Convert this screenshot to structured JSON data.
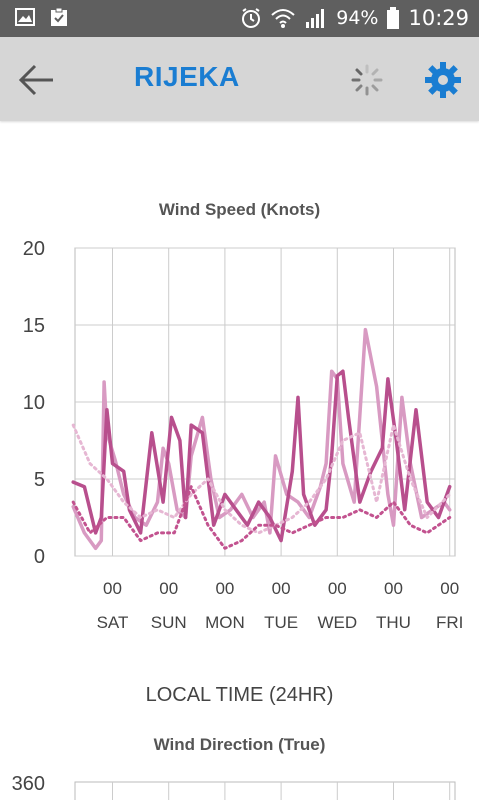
{
  "status_bar": {
    "battery": "94%",
    "time": "10:29",
    "left_icons": [
      "image-icon",
      "clipboard-check-icon"
    ],
    "right_icons": [
      "alarm-icon",
      "wifi-icon",
      "signal-icon",
      "battery-icon"
    ]
  },
  "app_bar": {
    "title": "RIJEKA",
    "back_icon": "arrow-left-icon",
    "loading_icon": "spinner-icon",
    "settings_icon": "gear-icon",
    "accent_color": "#1a7dd2"
  },
  "time_axis_label": "LOCAL TIME (24HR)",
  "chart_data": [
    {
      "type": "line",
      "title": "Wind Speed (Knots)",
      "xlabel": "LOCAL TIME (24HR)",
      "ylabel": "",
      "ylim": [
        0,
        20
      ],
      "yticks": [
        0,
        5,
        10,
        15,
        20
      ],
      "x_hour_ticks": [
        "00",
        "00",
        "00",
        "00",
        "00",
        "00",
        "00"
      ],
      "x_day_ticks": [
        "SAT",
        "SUN",
        "MON",
        "TUE",
        "WED",
        "THU",
        "FRI"
      ],
      "grid": true,
      "series": [
        {
          "color": "#d89ac2",
          "style": "solid",
          "x": [
            0,
            0.2,
            0.4,
            0.5,
            0.55,
            0.6,
            0.75,
            0.9,
            1.1,
            1.3,
            1.5,
            1.6,
            1.7,
            1.85,
            2.0,
            2.1,
            2.3,
            2.45,
            2.6,
            2.8,
            3.0,
            3.2,
            3.4,
            3.5,
            3.6,
            3.8,
            4.0,
            4.2,
            4.4,
            4.5,
            4.6,
            4.7,
            4.8,
            5.0,
            5.2,
            5.4,
            5.6,
            5.7,
            5.85,
            6.0,
            6.2,
            6.4,
            6.6,
            6.7
          ],
          "values": [
            3.2,
            1.5,
            0.5,
            1.0,
            11.3,
            8.0,
            6.2,
            4.0,
            2.5,
            2.0,
            3.5,
            7.0,
            6.0,
            3.0,
            2.5,
            6.5,
            9.0,
            5.0,
            2.5,
            3.0,
            4.0,
            2.5,
            3.5,
            1.5,
            6.5,
            4.0,
            3.5,
            2.5,
            4.5,
            6.0,
            12.0,
            11.5,
            6.0,
            3.5,
            14.7,
            11.0,
            4.0,
            2.0,
            10.3,
            6.0,
            2.5,
            3.0,
            3.5,
            3.0
          ]
        },
        {
          "color": "#b84f8d",
          "style": "solid",
          "x": [
            0,
            0.2,
            0.3,
            0.4,
            0.5,
            0.6,
            0.7,
            0.9,
            1.0,
            1.2,
            1.4,
            1.6,
            1.75,
            1.9,
            2.0,
            2.1,
            2.3,
            2.5,
            2.7,
            2.9,
            3.1,
            3.3,
            3.5,
            3.7,
            3.9,
            4.0,
            4.1,
            4.3,
            4.5,
            4.6,
            4.7,
            4.8,
            4.9,
            5.1,
            5.3,
            5.5,
            5.6,
            5.75,
            5.9,
            6.1,
            6.3,
            6.5,
            6.7
          ],
          "values": [
            4.8,
            4.5,
            3.0,
            1.5,
            2.5,
            9.5,
            6.0,
            5.5,
            3.0,
            1.5,
            8.0,
            3.5,
            9.0,
            7.5,
            2.5,
            8.5,
            8.0,
            2.0,
            4.0,
            3.0,
            2.0,
            3.5,
            2.5,
            1.0,
            5.5,
            10.3,
            4.0,
            2.0,
            3.0,
            6.5,
            11.7,
            12.0,
            9.0,
            3.5,
            5.5,
            7.0,
            11.5,
            7.5,
            3.0,
            9.5,
            3.5,
            2.5,
            4.5
          ]
        },
        {
          "color": "#e6b7d3",
          "style": "dotted",
          "x": [
            0,
            0.3,
            0.6,
            0.9,
            1.2,
            1.5,
            1.8,
            2.1,
            2.4,
            2.7,
            3.0,
            3.3,
            3.6,
            3.9,
            4.2,
            4.5,
            4.8,
            5.1,
            5.4,
            5.7,
            6.0,
            6.3,
            6.7
          ],
          "values": [
            8.5,
            6.0,
            5.0,
            3.5,
            2.5,
            3.0,
            2.5,
            4.0,
            5.0,
            3.0,
            2.0,
            1.5,
            2.0,
            2.5,
            3.5,
            5.0,
            7.5,
            8.0,
            3.5,
            8.5,
            5.0,
            2.5,
            4.0
          ]
        },
        {
          "color": "#c2528f",
          "style": "dotted",
          "x": [
            0,
            0.3,
            0.6,
            0.9,
            1.2,
            1.5,
            1.8,
            2.1,
            2.4,
            2.7,
            3.0,
            3.3,
            3.6,
            3.9,
            4.2,
            4.5,
            4.8,
            5.1,
            5.4,
            5.7,
            6.0,
            6.3,
            6.7
          ],
          "values": [
            3.5,
            1.5,
            2.5,
            2.5,
            1.0,
            1.5,
            1.5,
            4.5,
            2.0,
            0.5,
            1.0,
            2.0,
            2.0,
            1.5,
            2.0,
            2.5,
            2.5,
            3.0,
            2.5,
            3.5,
            2.0,
            1.5,
            2.5
          ]
        }
      ]
    },
    {
      "type": "line",
      "title": "Wind Direction (True)",
      "ylabel": "",
      "ylim": [
        0,
        360
      ],
      "yticks": [
        360
      ],
      "grid": true,
      "series": []
    }
  ]
}
